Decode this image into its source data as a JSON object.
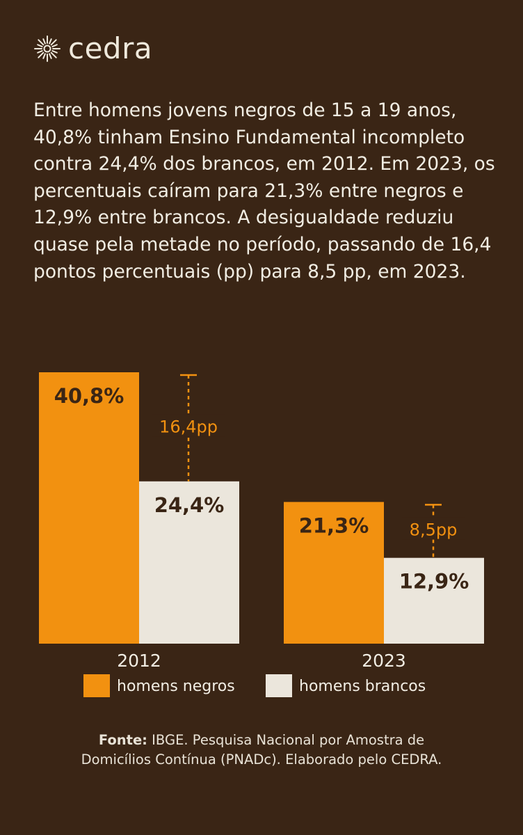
{
  "brand": {
    "name": "cedra"
  },
  "description": "Entre homens jovens negros de 15 a 19 anos, 40,8% tinham Ensino Fundamental incompleto contra 24,4% dos brancos, em 2012. Em 2023, os percentuais caíram para 21,3% entre negros e 12,9% entre brancos. A desigualdade reduziu quase pela metade no período, passando de 16,4 pontos percentuais (pp) para 8,5 pp, em 2023.",
  "colors": {
    "background": "#3a2515",
    "negros": "#f29110",
    "brancos": "#ebe6dc",
    "text_light": "#f1ede3",
    "text_dark": "#3a2515"
  },
  "chart_data": {
    "type": "bar",
    "categories": [
      "2012",
      "2023"
    ],
    "series": [
      {
        "name": "homens negros",
        "values": [
          40.8,
          21.3
        ],
        "labels": [
          "40,8%",
          "21,3%"
        ]
      },
      {
        "name": "homens brancos",
        "values": [
          24.4,
          12.9
        ],
        "labels": [
          "24,4%",
          "12,9%"
        ]
      }
    ],
    "gaps": [
      {
        "category": "2012",
        "value": 16.4,
        "label": "16,4pp"
      },
      {
        "category": "2023",
        "value": 8.5,
        "label": "8,5pp"
      }
    ],
    "ylim": [
      0,
      40.8
    ],
    "legend": {
      "position": "bottom"
    },
    "grid": false
  },
  "source": {
    "prefix": "Fonte:",
    "line1": " IBGE. Pesquisa Nacional por Amostra de",
    "line2": "Domicílios Contínua (PNADc). Elaborado pelo CEDRA."
  }
}
